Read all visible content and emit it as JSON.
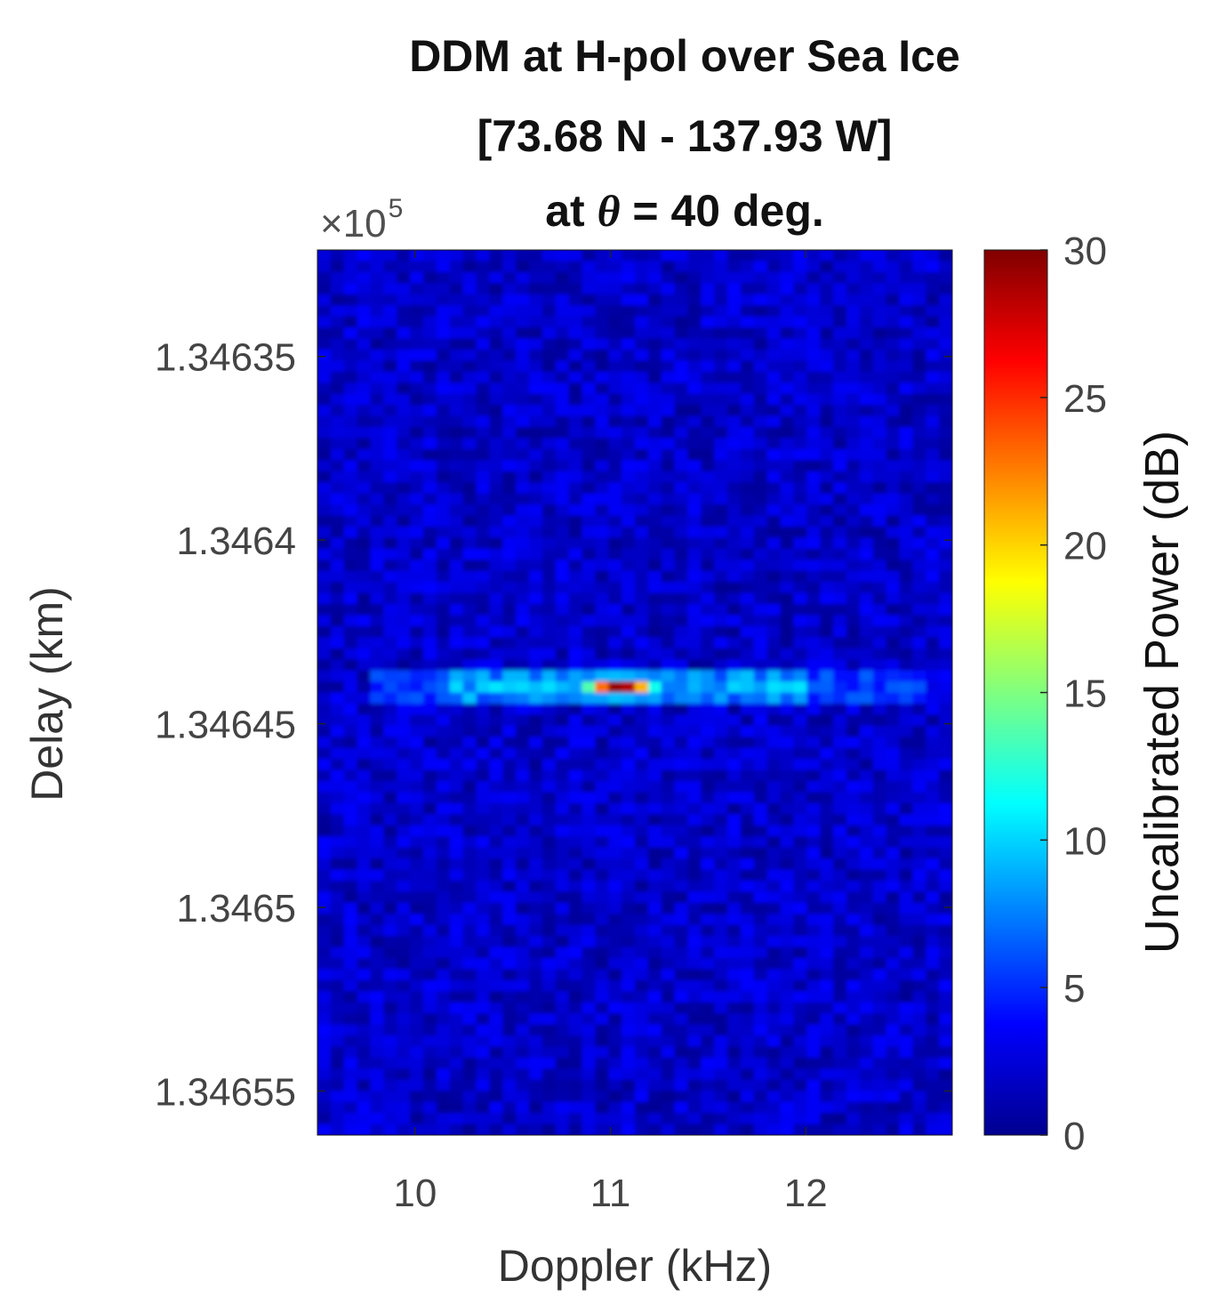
{
  "chart_data": {
    "type": "heatmap",
    "title_lines": [
      "DDM at H-pol over Sea Ice",
      "[73.68 N - 137.93 W]",
      "at θ = 40 deg."
    ],
    "title_line3_parts": {
      "prefix": "at ",
      "symbol": "θ",
      "suffix": " = 40 deg."
    },
    "xlabel": "Doppler (kHz)",
    "ylabel": "Delay (km)",
    "y_exponent": {
      "prefix": "×10",
      "power": "5"
    },
    "x_ticks": [
      {
        "value": 10,
        "label": "10"
      },
      {
        "value": 11,
        "label": "11"
      },
      {
        "value": 12,
        "label": "12"
      }
    ],
    "y_ticks": [
      {
        "value": 1.34635,
        "label": "1.34635"
      },
      {
        "value": 1.3464,
        "label": "1.3464"
      },
      {
        "value": 1.34645,
        "label": "1.34645"
      },
      {
        "value": 1.3465,
        "label": "1.3465"
      },
      {
        "value": 1.34655,
        "label": "1.34655"
      }
    ],
    "xlim": [
      9.5,
      12.75
    ],
    "ylim": [
      1.346321,
      1.346562
    ],
    "y_reversed": true,
    "colorbar": {
      "label": "Uncalibrated Power (dB)",
      "range": [
        0,
        30
      ],
      "ticks": [
        0,
        5,
        10,
        15,
        20,
        25,
        30
      ],
      "colormap": "jet"
    },
    "background_level_db": 2,
    "peak": {
      "doppler_khz": 11.05,
      "delay_km_e5": 1.34644,
      "power_db": 30
    },
    "specular_delay_km_e5": 1.34644,
    "horizontal_streak_doppler_khz": [
      9.8,
      12.6
    ],
    "bright_band_doppler_khz": [
      10.2,
      12.0
    ],
    "grid": false
  }
}
